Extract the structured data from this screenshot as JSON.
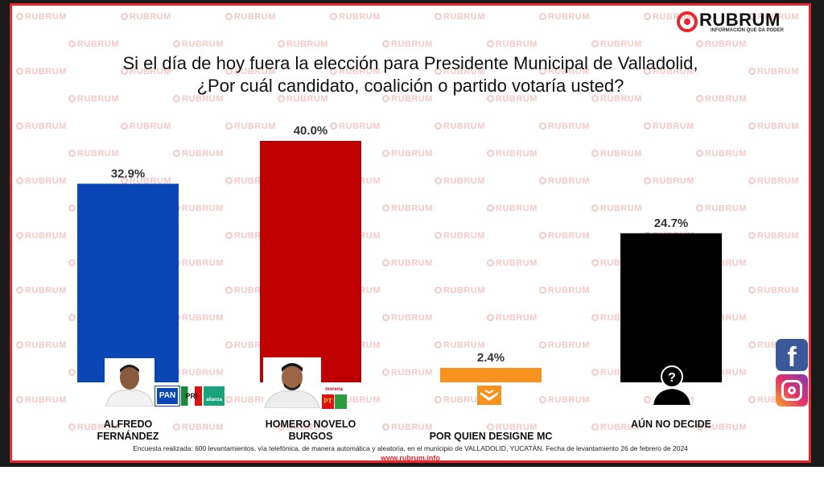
{
  "brand": {
    "name": "RUBRUM",
    "tagline": "INFORMACIÓN QUE DA PODER",
    "watermark": "RUBRUM",
    "accent_color": "#e8262b"
  },
  "question": {
    "line1": "Si el día de hoy fuera la elección para Presidente Municipal de Valladolid,",
    "line2": "¿Por cuál candidato, coalición o partido votaría usted?"
  },
  "chart_data": {
    "type": "bar",
    "title": "Si el día de hoy fuera la elección para Presidente Municipal de Valladolid, ¿Por cuál candidato, coalición o partido votaría usted?",
    "categories": [
      "ALFREDO FERNÁNDEZ",
      "HOMERO NOVELO BURGOS",
      "POR QUIEN DESIGNE MC",
      "AÚN NO DECIDE"
    ],
    "values": [
      32.9,
      40.0,
      2.4,
      24.7
    ],
    "value_labels": [
      "32.9%",
      "40.0%",
      "2.4%",
      "24.7%"
    ],
    "colors": [
      "#0a47b5",
      "#c00000",
      "#f7921e",
      "#000000"
    ],
    "ylim": [
      0,
      40
    ],
    "grid": false,
    "legend": "none"
  },
  "candidates": [
    {
      "line1": "ALFREDO",
      "line2": "FERNÁNDEZ",
      "parties": [
        "PAN",
        "PRI",
        "alianza"
      ]
    },
    {
      "line1": "HOMERO NOVELO",
      "line2": "BURGOS",
      "parties": [
        "morena",
        "PT",
        "PVEM"
      ]
    },
    {
      "line1": "POR QUIEN DESIGNE MC",
      "line2": "",
      "parties": [
        "MC"
      ]
    },
    {
      "line1": "AÚN NO DECIDE",
      "line2": "",
      "parties": []
    }
  ],
  "footer": {
    "note": "Encuesta realizada: 600 levantamientos, vía telefónica, de manera automática y aleatoria, en el municipio de VALLADOLID, YUCATÁN. Fecha de levantamiento 26 de febrero de 2024",
    "url": "www.rubrum.info"
  },
  "social": {
    "facebook_icon": "facebook-icon",
    "instagram_icon": "instagram-icon"
  }
}
